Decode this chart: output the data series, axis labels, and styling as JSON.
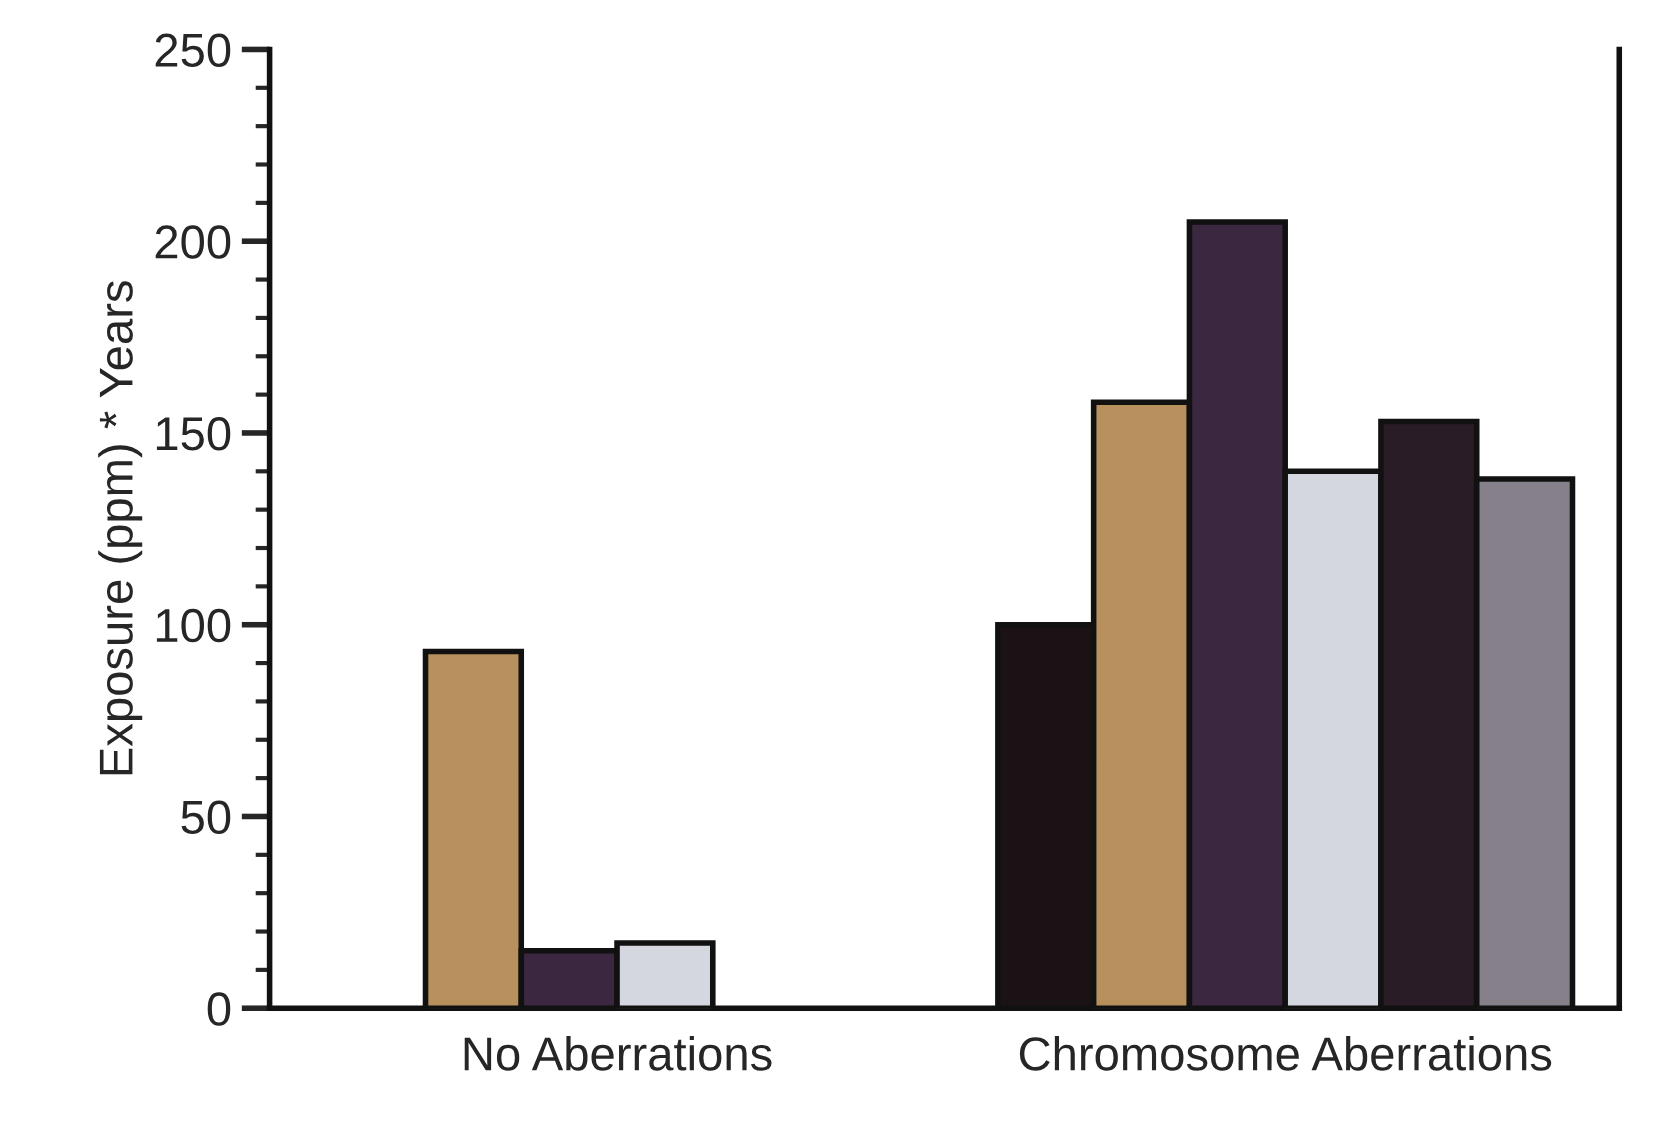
{
  "chart_data": {
    "type": "bar",
    "ylabel": "Exposure (ppm) * Years",
    "categories": [
      "No Aberrations",
      "Chromosome Aberrations"
    ],
    "series": [
      {
        "color": "#1a1214",
        "values": [
          null,
          100
        ]
      },
      {
        "color": "#b8905e",
        "values": [
          93,
          158
        ]
      },
      {
        "color": "#3b2740",
        "values": [
          15,
          205
        ]
      },
      {
        "color": "#d4d6e0",
        "values": [
          17,
          140
        ]
      },
      {
        "color": "#2a1c26",
        "values": [
          null,
          153
        ]
      },
      {
        "color": "#85808a",
        "values": [
          null,
          138
        ]
      }
    ],
    "ylim": [
      0,
      250
    ],
    "yticks": [
      0,
      50,
      100,
      150,
      200,
      250
    ],
    "grid": false,
    "legend": false
  }
}
